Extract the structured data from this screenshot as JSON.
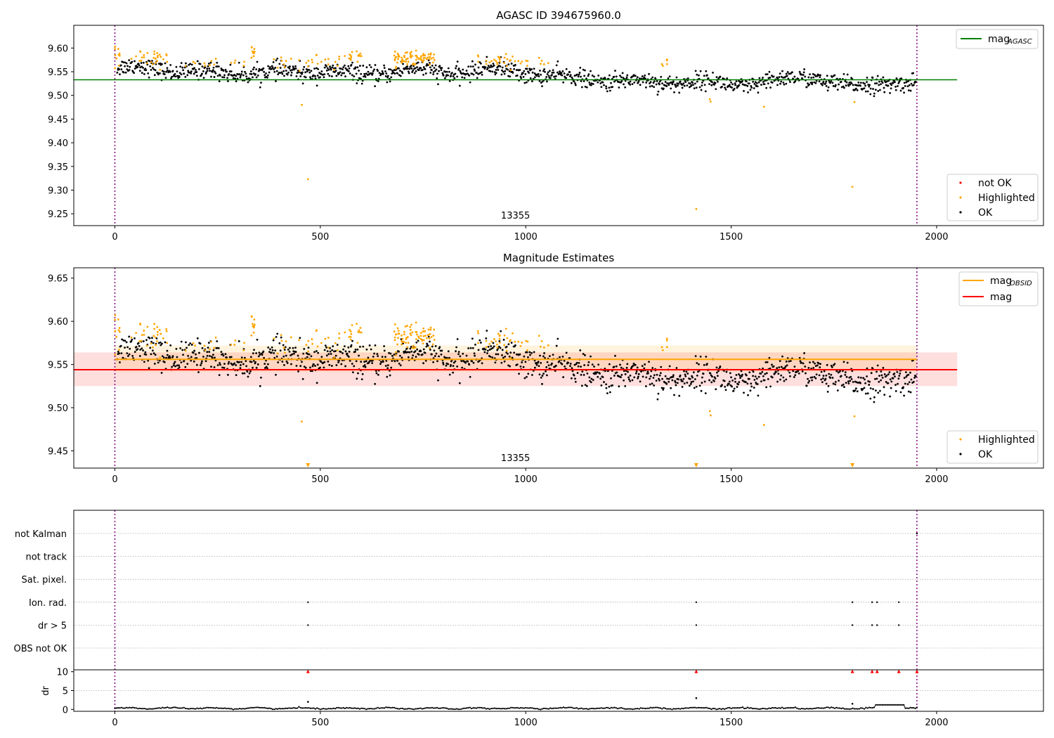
{
  "chart_data": [
    {
      "type": "scatter",
      "title": "AGASC ID 394675960.0",
      "xlim": [
        -100,
        2260
      ],
      "ylim": [
        9.225,
        9.648
      ],
      "xticks": [
        0,
        500,
        1000,
        1500,
        2000
      ],
      "yticks": [
        9.25,
        9.3,
        9.35,
        9.4,
        9.45,
        9.5,
        9.55,
        9.6
      ],
      "grid": false,
      "obs_boundaries": [
        0,
        1952
      ],
      "obs_label": {
        "text": "13355",
        "x": 975
      },
      "lines": [
        {
          "name": "mag_AGASC",
          "label_main": "mag",
          "label_sub": "AGASC",
          "y": 9.533,
          "x_range": [
            -100,
            2050
          ],
          "color": "#008000"
        }
      ],
      "series": [
        {
          "name": "not OK",
          "color": "#ff0000",
          "points": []
        },
        {
          "name": "Highlighted",
          "color": "#ffa500",
          "clusters": [
            {
              "x_range": [
                0,
                12
              ],
              "y_center": 9.585,
              "spread": 0.012,
              "n": 10
            },
            {
              "x_range": [
                40,
                130
              ],
              "y_center": 9.578,
              "spread": 0.01,
              "n": 30
            },
            {
              "x_range": [
                170,
                330
              ],
              "y_center": 9.566,
              "spread": 0.005,
              "n": 14
            },
            {
              "x_range": [
                330,
                340
              ],
              "y_center": 9.588,
              "spread": 0.008,
              "n": 10
            },
            {
              "x_range": [
                380,
                480
              ],
              "y_center": 9.568,
              "spread": 0.006,
              "n": 12
            },
            {
              "x_range": [
                470,
                560
              ],
              "y_center": 9.572,
              "spread": 0.008,
              "n": 16
            },
            {
              "x_range": [
                570,
                600
              ],
              "y_center": 9.582,
              "spread": 0.008,
              "n": 14
            },
            {
              "x_range": [
                680,
                780
              ],
              "y_center": 9.58,
              "spread": 0.007,
              "n": 75
            },
            {
              "x_range": [
                880,
                1010
              ],
              "y_center": 9.574,
              "spread": 0.007,
              "n": 32
            },
            {
              "x_range": [
                1030,
                1060
              ],
              "y_center": 9.57,
              "spread": 0.004,
              "n": 5
            },
            {
              "x_range": [
                1320,
                1345
              ],
              "y_center": 9.566,
              "spread": 0.006,
              "n": 5
            }
          ],
          "points": [
            [
              455,
              9.48
            ],
            [
              470,
              9.323
            ],
            [
              1415,
              9.26
            ],
            [
              1450,
              9.487
            ],
            [
              1448,
              9.492
            ],
            [
              1580,
              9.476
            ],
            [
              1795,
              9.307
            ],
            [
              1800,
              9.486
            ]
          ]
        },
        {
          "name": "OK",
          "color": "#000000",
          "segments": [
            [
              0,
              9.556
            ],
            [
              100,
              9.559
            ],
            [
              200,
              9.548
            ],
            [
              300,
              9.549
            ],
            [
              400,
              9.547
            ],
            [
              500,
              9.553
            ],
            [
              600,
              9.541
            ],
            [
              700,
              9.556
            ],
            [
              800,
              9.547
            ],
            [
              900,
              9.555
            ],
            [
              1000,
              9.55
            ],
            [
              1100,
              9.536
            ],
            [
              1200,
              9.533
            ],
            [
              1300,
              9.527
            ],
            [
              1400,
              9.53
            ],
            [
              1500,
              9.522
            ],
            [
              1600,
              9.528
            ],
            [
              1700,
              9.54
            ],
            [
              1800,
              9.515
            ],
            [
              1900,
              9.53
            ],
            [
              1950,
              9.525
            ]
          ],
          "noise": 0.009,
          "n": 1300
        }
      ],
      "legends": [
        {
          "position": "upper-right",
          "entries": [
            "mag_AGASC"
          ]
        },
        {
          "position": "lower-right",
          "entries": [
            "not OK",
            "Highlighted",
            "OK"
          ]
        }
      ]
    },
    {
      "type": "scatter",
      "title": "Magnitude Estimates",
      "xlim": [
        -100,
        2260
      ],
      "ylim": [
        9.43,
        9.662
      ],
      "xticks": [
        0,
        500,
        1000,
        1500,
        2000
      ],
      "yticks": [
        9.45,
        9.5,
        9.55,
        9.6,
        9.65
      ],
      "grid": false,
      "obs_boundaries": [
        0,
        1952
      ],
      "obs_label": {
        "text": "13355",
        "x": 975
      },
      "lines": [
        {
          "name": "mag_OBSID",
          "label_main": "mag",
          "label_sub": "OBSID",
          "y": 9.556,
          "x_range": [
            0,
            1952
          ],
          "color": "#ffa500",
          "band": [
            9.541,
            9.572
          ],
          "band_color": "#ffa500"
        },
        {
          "name": "mag",
          "label_main": "mag",
          "label_sub": "",
          "y": 9.544,
          "x_range": [
            -100,
            2050
          ],
          "color": "#ff0000",
          "band": [
            9.525,
            9.564
          ],
          "band_color": "#ff0000"
        }
      ],
      "out_of_range_markers": [
        470,
        1415,
        1795
      ],
      "series": [
        {
          "name": "Highlighted",
          "color": "#ffa500"
        },
        {
          "name": "OK",
          "color": "#000000"
        }
      ],
      "legends": [
        {
          "position": "upper-right",
          "entries": [
            "mag_OBSID",
            "mag"
          ]
        },
        {
          "position": "lower-right",
          "entries": [
            "Highlighted",
            "OK"
          ]
        }
      ]
    },
    {
      "type": "scatter",
      "title": "",
      "xlim": [
        -100,
        2260
      ],
      "xticks": [
        0,
        500,
        1000,
        1500,
        2000
      ],
      "flag_rows": [
        "not Kalman",
        "not track",
        "Sat. pixel.",
        "Ion. rad.",
        "dr > 5",
        "OBS not OK"
      ],
      "flags": {
        "not Kalman": [
          1952
        ],
        "Ion. rad.": [
          470,
          1415,
          1795,
          1843,
          1855,
          1908
        ],
        "dr > 5": [
          470,
          1415,
          1795,
          1843,
          1855,
          1908
        ]
      },
      "dr_panel": {
        "ylabel": "dr",
        "ylim": [
          -0.5,
          10.5
        ],
        "yticks": [
          0,
          5,
          10
        ],
        "clipped_markers": [
          470,
          1415,
          1795,
          1843,
          1855,
          1908,
          1952
        ],
        "baseline": 0.3,
        "points": [
          [
            470,
            2.0
          ],
          [
            1415,
            3.0
          ],
          [
            1795,
            1.5
          ]
        ],
        "bump": {
          "x_range": [
            1850,
            1920
          ],
          "y": 1.2
        }
      },
      "obs_boundaries": [
        0,
        1952
      ]
    }
  ]
}
